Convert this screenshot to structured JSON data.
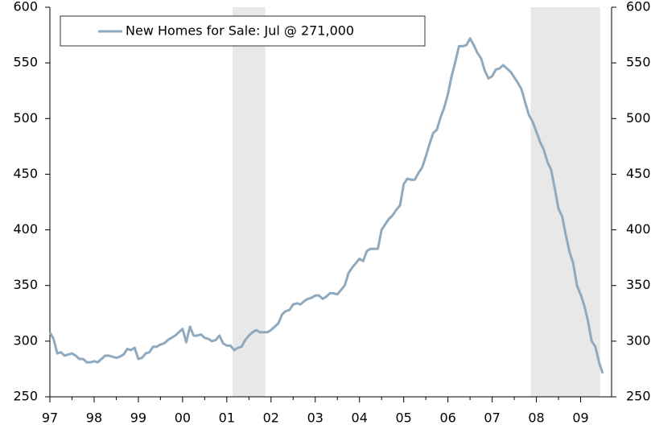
{
  "chart_data": {
    "type": "line",
    "xlim": [
      1997,
      2009.7
    ],
    "ylim": [
      250,
      600
    ],
    "xticks": [
      {
        "value": 1997,
        "label": "97"
      },
      {
        "value": 1998,
        "label": "98"
      },
      {
        "value": 1999,
        "label": "99"
      },
      {
        "value": 2000,
        "label": "00"
      },
      {
        "value": 2001,
        "label": "01"
      },
      {
        "value": 2002,
        "label": "02"
      },
      {
        "value": 2003,
        "label": "03"
      },
      {
        "value": 2004,
        "label": "04"
      },
      {
        "value": 2005,
        "label": "05"
      },
      {
        "value": 2006,
        "label": "06"
      },
      {
        "value": 2007,
        "label": "07"
      },
      {
        "value": 2008,
        "label": "08"
      },
      {
        "value": 2009,
        "label": "09"
      }
    ],
    "yticks": [
      250,
      300,
      350,
      400,
      450,
      500,
      550,
      600
    ],
    "y2lim": [
      250,
      600
    ],
    "y2ticks": [
      250,
      300,
      350,
      400,
      450,
      500,
      550,
      600
    ],
    "grid": false,
    "legend": "top-left",
    "shaded_regions": [
      [
        2001.13,
        2001.87
      ],
      [
        2007.87,
        2009.44
      ]
    ],
    "shade_color": "#e8e8e8",
    "x": [
      1997.0,
      1997.083,
      1997.167,
      1997.25,
      1997.333,
      1997.417,
      1997.5,
      1997.583,
      1997.667,
      1997.75,
      1997.833,
      1997.917,
      1998.0,
      1998.083,
      1998.167,
      1998.25,
      1998.333,
      1998.417,
      1998.5,
      1998.583,
      1998.667,
      1998.75,
      1998.833,
      1998.917,
      1999.0,
      1999.083,
      1999.167,
      1999.25,
      1999.333,
      1999.417,
      1999.5,
      1999.583,
      1999.667,
      1999.75,
      1999.833,
      1999.917,
      2000.0,
      2000.083,
      2000.167,
      2000.25,
      2000.333,
      2000.417,
      2000.5,
      2000.583,
      2000.667,
      2000.75,
      2000.833,
      2000.917,
      2001.0,
      2001.083,
      2001.167,
      2001.25,
      2001.333,
      2001.417,
      2001.5,
      2001.583,
      2001.667,
      2001.75,
      2001.833,
      2001.917,
      2002.0,
      2002.083,
      2002.167,
      2002.25,
      2002.333,
      2002.417,
      2002.5,
      2002.583,
      2002.667,
      2002.75,
      2002.833,
      2002.917,
      2003.0,
      2003.083,
      2003.167,
      2003.25,
      2003.333,
      2003.417,
      2003.5,
      2003.583,
      2003.667,
      2003.75,
      2003.833,
      2003.917,
      2004.0,
      2004.083,
      2004.167,
      2004.25,
      2004.333,
      2004.417,
      2004.5,
      2004.583,
      2004.667,
      2004.75,
      2004.833,
      2004.917,
      2005.0,
      2005.083,
      2005.167,
      2005.25,
      2005.333,
      2005.417,
      2005.5,
      2005.583,
      2005.667,
      2005.75,
      2005.833,
      2005.917,
      2006.0,
      2006.083,
      2006.167,
      2006.25,
      2006.333,
      2006.417,
      2006.5,
      2006.583,
      2006.667,
      2006.75,
      2006.833,
      2006.917,
      2007.0,
      2007.083,
      2007.167,
      2007.25,
      2007.333,
      2007.417,
      2007.5,
      2007.583,
      2007.667,
      2007.75,
      2007.833,
      2007.917,
      2008.0,
      2008.083,
      2008.167,
      2008.25,
      2008.333,
      2008.417,
      2008.5,
      2008.583,
      2008.667,
      2008.75,
      2008.833,
      2008.917,
      2009.0,
      2009.083,
      2009.167,
      2009.25,
      2009.333,
      2009.417,
      2009.5
    ],
    "series": [
      {
        "name": "New Homes for Sale: Jul @ 271,000",
        "color": "#8fa9bf",
        "values": [
          308,
          302,
          289,
          290,
          287,
          288,
          289,
          287,
          284,
          284,
          281,
          281,
          282,
          281,
          284,
          287,
          287,
          286,
          285,
          286,
          288,
          293,
          292,
          294,
          284,
          285,
          289,
          290,
          295,
          295,
          297,
          298,
          301,
          303,
          305,
          308,
          311,
          299,
          313,
          305,
          305,
          306,
          303,
          302,
          300,
          301,
          305,
          298,
          296,
          296,
          292,
          294,
          295,
          301,
          305,
          308,
          310,
          308,
          308,
          308,
          310,
          313,
          316,
          324,
          327,
          328,
          333,
          334,
          333,
          336,
          338,
          339,
          341,
          341,
          338,
          340,
          343,
          343,
          342,
          346,
          350,
          361,
          366,
          370,
          374,
          372,
          381,
          383,
          383,
          383,
          400,
          405,
          410,
          413,
          418,
          422,
          441,
          446,
          445,
          445,
          451,
          456,
          466,
          477,
          487,
          490,
          501,
          510,
          522,
          538,
          551,
          565,
          565,
          566,
          572,
          566,
          559,
          554,
          543,
          536,
          538,
          544,
          545,
          548,
          545,
          542,
          537,
          532,
          526,
          514,
          503,
          497,
          488,
          479,
          472,
          461,
          454,
          437,
          419,
          412,
          395,
          380,
          370,
          350,
          342,
          332,
          318,
          300,
          295,
          281,
          271
        ]
      }
    ]
  }
}
